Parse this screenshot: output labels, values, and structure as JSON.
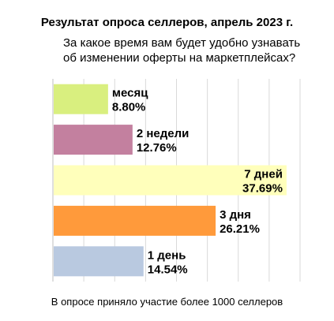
{
  "chart_data": {
    "type": "bar",
    "orientation": "horizontal",
    "title": "Результат опроса селлеров, апрель 2023 г.",
    "subtitle": "За какое время вам будет удобно узнавать об изменении оферты на маркетплейсах?",
    "footnote": "В опросе приняло участие более 1000 селлеров",
    "categories": [
      "месяц",
      "2 недели",
      "7 дней",
      "3 дня",
      "1 день"
    ],
    "values": [
      8.8,
      12.76,
      37.69,
      26.21,
      14.54
    ],
    "value_labels": [
      "8.80%",
      "12.76%",
      "37.69%",
      "26.21%",
      "14.54%"
    ],
    "colors": [
      "#d9ef7f",
      "#c3809f",
      "#ffffbb",
      "#ff9a3b",
      "#b9c9e0"
    ],
    "xlim": [
      0,
      40
    ],
    "grid": true,
    "legend": "none"
  }
}
